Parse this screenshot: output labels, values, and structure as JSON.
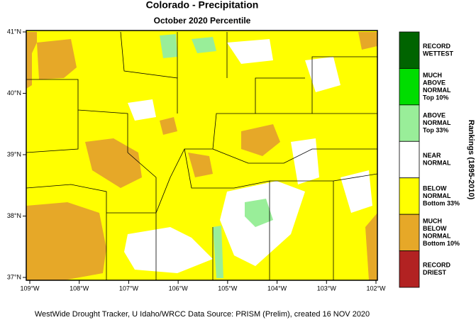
{
  "header": {
    "title": "Colorado - Precipitation",
    "subtitle": "October 2020 Percentile"
  },
  "map": {
    "x_ticks": [
      "109°W",
      "108°W",
      "107°W",
      "106°W",
      "105°W",
      "104°W",
      "103°W",
      "102°W"
    ],
    "y_ticks": [
      "41°N",
      "40°N",
      "39°N",
      "38°N",
      "37°N"
    ]
  },
  "legend": {
    "title": "Rankings (1895-2010)",
    "items": [
      {
        "lines": [
          "RECORD",
          "WETTEST"
        ],
        "color": "#006400"
      },
      {
        "lines": [
          "MUCH",
          "ABOVE",
          "NORMAL",
          "Top 10%"
        ],
        "color": "#00dd00"
      },
      {
        "lines": [
          "ABOVE",
          "NORMAL",
          "Top 33%"
        ],
        "color": "#99ee99"
      },
      {
        "lines": [
          "NEAR",
          "NORMAL"
        ],
        "color": "#ffffff"
      },
      {
        "lines": [
          "BELOW",
          "NORMAL",
          "Bottom 33%"
        ],
        "color": "#ffff00"
      },
      {
        "lines": [
          "MUCH",
          "BELOW",
          "NORMAL",
          "Bottom 10%"
        ],
        "color": "#e6a828"
      },
      {
        "lines": [
          "RECORD",
          "DRIEST"
        ],
        "color": "#b22222"
      }
    ]
  },
  "footer": "WestWide Drought Tracker, U Idaho/WRCC Data Source: PRISM (Prelim), created 16 NOV 2020"
}
